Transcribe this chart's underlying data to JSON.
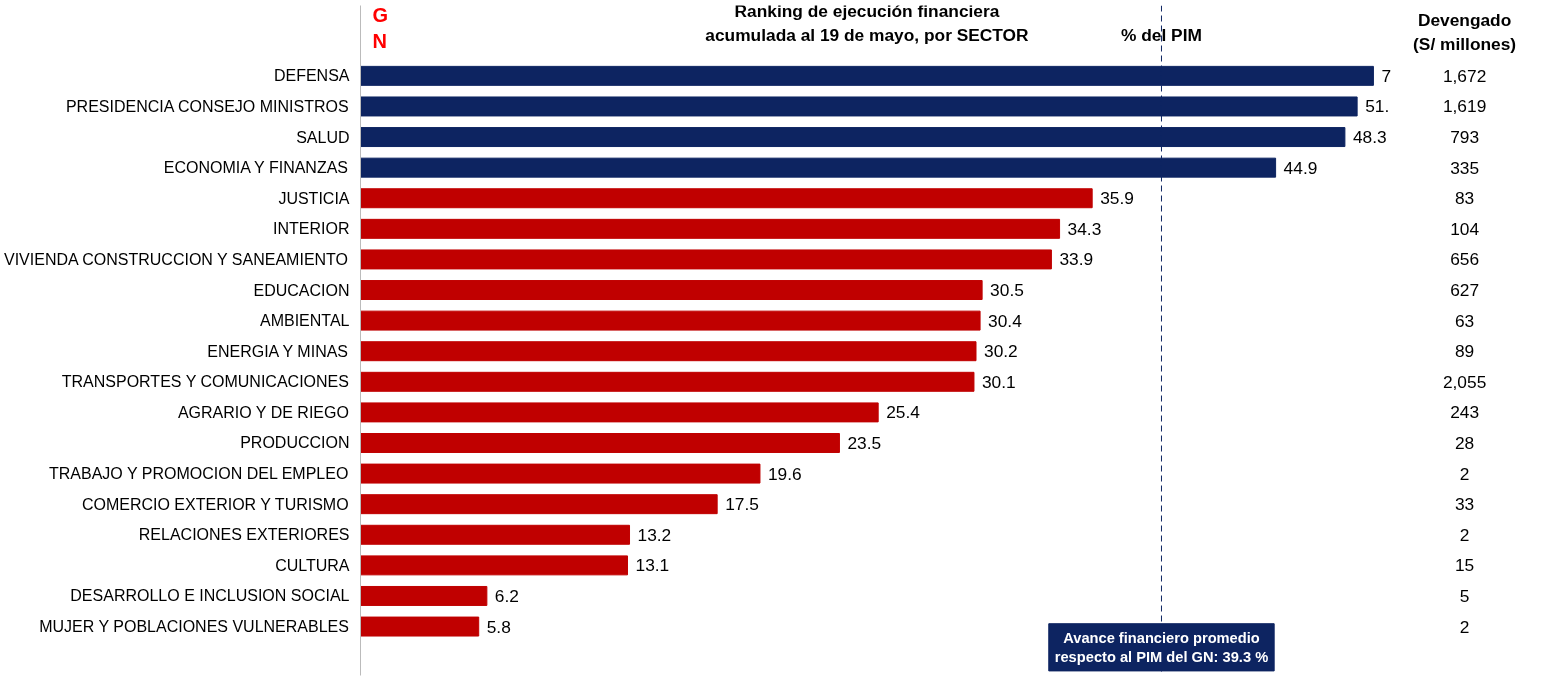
{
  "chart_data": {
    "type": "bar",
    "orientation": "horizontal",
    "title": "Ranking de ejecución financiera\nacumulada al 19 de mayo, por SECTOR",
    "xlabel": "% del PIM",
    "y2label": "Devengado\n(S/ millones)",
    "categories": [
      "DEFENSA",
      "PRESIDENCIA CONSEJO MINISTROS",
      "SALUD",
      "ECONOMIA Y FINANZAS",
      "JUSTICIA",
      "INTERIOR",
      "VIVIENDA CONSTRUCCION Y SANEAMIENTO",
      "EDUCACION",
      "AMBIENTAL",
      "ENERGIA Y MINAS",
      "TRANSPORTES Y COMUNICACIONES",
      "AGRARIO Y DE RIEGO",
      "PRODUCCION",
      "TRABAJO Y PROMOCION DEL EMPLEO",
      "COMERCIO EXTERIOR Y TURISMO",
      "RELACIONES EXTERIORES",
      "CULTURA",
      "DESARROLLO E INCLUSION SOCIAL",
      "MUJER Y POBLACIONES VULNERABLES"
    ],
    "values": [
      49.7,
      48.9,
      48.3,
      44.9,
      35.9,
      34.3,
      33.9,
      30.5,
      30.4,
      30.2,
      30.1,
      25.4,
      23.5,
      19.6,
      17.5,
      13.2,
      13.1,
      6.2,
      5.8
    ],
    "value_labels": [
      null,
      null,
      "48.3",
      "44.9",
      "35.9",
      "34.3",
      "33.9",
      "30.5",
      "30.4",
      "30.2",
      "30.1",
      "25.4",
      "23.5",
      "19.6",
      "17.5",
      "13.2",
      "13.1",
      "6.2",
      "5.8"
    ],
    "colors": [
      "#0d2461",
      "#0d2461",
      "#0d2461",
      "#0d2461",
      "#c00000",
      "#c00000",
      "#c00000",
      "#c00000",
      "#c00000",
      "#c00000",
      "#c00000",
      "#c00000",
      "#c00000",
      "#c00000",
      "#c00000",
      "#c00000",
      "#c00000",
      "#c00000",
      "#c00000"
    ],
    "ref_lines": [
      {
        "axis": "x",
        "value": 39.3,
        "label": "Avance financiero promedio\nrespecto al PIM del GN: 39.3 %",
        "color": "#0d2461",
        "line_style": "dashed"
      }
    ],
    "annotations": [
      "G\nN",
      {
        "text": "7",
        "x": 49.7,
        "y": "DEFENSA"
      },
      {
        "text": "51.",
        "x": 48.9,
        "y": "PRESIDENCIA CONSEJO MINISTROS"
      },
      "1,672",
      "1,619",
      "793",
      "335",
      "83",
      "104",
      "656",
      "627",
      "63",
      "89",
      "2,055",
      "243",
      "28",
      "2",
      "33",
      "2",
      "15",
      "5",
      "2"
    ],
    "grid": false
  }
}
